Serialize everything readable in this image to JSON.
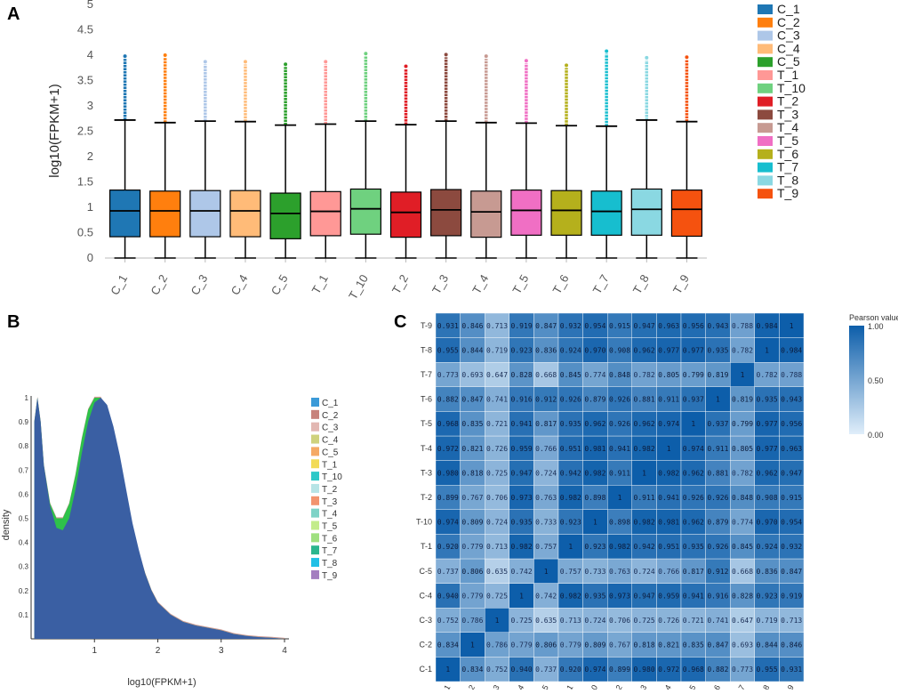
{
  "chart_data": [
    {
      "panel": "A",
      "type": "box",
      "ylabel": "log10(FPKM+1)",
      "ylim": [
        0,
        5
      ],
      "yticks": [
        "0",
        "0.5",
        "1",
        "1.5",
        "2",
        "2.5",
        "3",
        "3.5",
        "4",
        "4.5",
        "5"
      ],
      "categories": [
        "C_1",
        "C_2",
        "C_3",
        "C_4",
        "C_5",
        "T_1",
        "T_10",
        "T_2",
        "T_3",
        "T_4",
        "T_5",
        "T_6",
        "T_7",
        "T_8",
        "T_9"
      ],
      "colors": [
        "#1f77b4",
        "#ff7f0e",
        "#aec7e8",
        "#ffbb78",
        "#2ca02c",
        "#ff9896",
        "#6fd17f",
        "#e01e26",
        "#8c4a3f",
        "#c79a92",
        "#f06fc4",
        "#b5b01c",
        "#17becf",
        "#8ad8e2",
        "#f5520f"
      ],
      "boxes": [
        {
          "q1": 0.42,
          "median": 0.93,
          "q3": 1.34,
          "whisker_low": 0,
          "whisker_high": 2.72,
          "outlier_max": 3.98
        },
        {
          "q1": 0.42,
          "median": 0.93,
          "q3": 1.32,
          "whisker_low": 0,
          "whisker_high": 2.67,
          "outlier_max": 4.0
        },
        {
          "q1": 0.42,
          "median": 0.93,
          "q3": 1.33,
          "whisker_low": 0,
          "whisker_high": 2.7,
          "outlier_max": 3.87
        },
        {
          "q1": 0.42,
          "median": 0.93,
          "q3": 1.33,
          "whisker_low": 0,
          "whisker_high": 2.69,
          "outlier_max": 3.87
        },
        {
          "q1": 0.38,
          "median": 0.88,
          "q3": 1.28,
          "whisker_low": 0,
          "whisker_high": 2.62,
          "outlier_max": 3.82
        },
        {
          "q1": 0.44,
          "median": 0.92,
          "q3": 1.31,
          "whisker_low": 0,
          "whisker_high": 2.64,
          "outlier_max": 3.87
        },
        {
          "q1": 0.47,
          "median": 0.97,
          "q3": 1.36,
          "whisker_low": 0,
          "whisker_high": 2.7,
          "outlier_max": 4.03
        },
        {
          "q1": 0.41,
          "median": 0.9,
          "q3": 1.3,
          "whisker_low": 0,
          "whisker_high": 2.63,
          "outlier_max": 3.78
        },
        {
          "q1": 0.44,
          "median": 0.95,
          "q3": 1.35,
          "whisker_low": 0,
          "whisker_high": 2.7,
          "outlier_max": 4.01
        },
        {
          "q1": 0.41,
          "median": 0.91,
          "q3": 1.32,
          "whisker_low": 0,
          "whisker_high": 2.67,
          "outlier_max": 3.98
        },
        {
          "q1": 0.45,
          "median": 0.94,
          "q3": 1.34,
          "whisker_low": 0,
          "whisker_high": 2.66,
          "outlier_max": 3.89
        },
        {
          "q1": 0.45,
          "median": 0.94,
          "q3": 1.33,
          "whisker_low": 0,
          "whisker_high": 2.61,
          "outlier_max": 3.8
        },
        {
          "q1": 0.45,
          "median": 0.92,
          "q3": 1.32,
          "whisker_low": 0,
          "whisker_high": 2.6,
          "outlier_max": 4.08
        },
        {
          "q1": 0.45,
          "median": 0.96,
          "q3": 1.36,
          "whisker_low": 0,
          "whisker_high": 2.72,
          "outlier_max": 3.95
        },
        {
          "q1": 0.43,
          "median": 0.96,
          "q3": 1.34,
          "whisker_low": 0,
          "whisker_high": 2.69,
          "outlier_max": 3.96
        }
      ]
    },
    {
      "panel": "B",
      "type": "area",
      "xlabel": "log10(FPKM+1)",
      "ylabel": "density",
      "xlim": [
        0,
        4
      ],
      "ylim": [
        0,
        1
      ],
      "xticks": [
        "1",
        "2",
        "3",
        "4"
      ],
      "yticks": [
        "0.1",
        "0.2",
        "0.3",
        "0.4",
        "0.5",
        "0.6",
        "0.7",
        "0.8",
        "0.9",
        "1"
      ],
      "legend": [
        "C_1",
        "C_2",
        "C_3",
        "C_4",
        "C_5",
        "T_1",
        "T_10",
        "T_2",
        "T_3",
        "T_4",
        "T_5",
        "T_6",
        "T_7",
        "T_8",
        "T_9"
      ],
      "legend_colors": [
        "#3b9ad8",
        "#c7837c",
        "#e2b7b2",
        "#cfd27d",
        "#f5a964",
        "#f2db56",
        "#2ec8c8",
        "#b7e4e6",
        "#f2946f",
        "#7ed3c7",
        "#c3ec8b",
        "#9fe07f",
        "#2bb68e",
        "#21c0e6",
        "#a47fc0"
      ],
      "fill_color": "#3a5fa3",
      "green_fill": "#2ec24a",
      "x": [
        0.05,
        0.1,
        0.15,
        0.2,
        0.3,
        0.4,
        0.5,
        0.6,
        0.7,
        0.8,
        0.9,
        1.0,
        1.1,
        1.2,
        1.3,
        1.4,
        1.5,
        1.6,
        1.7,
        1.8,
        1.9,
        2.0,
        2.2,
        2.4,
        2.6,
        2.8,
        3.0,
        3.2,
        3.4,
        3.6,
        3.8,
        4.0
      ],
      "series": [
        {
          "name": "main",
          "values": [
            0.9,
            1.0,
            0.9,
            0.72,
            0.55,
            0.46,
            0.45,
            0.5,
            0.62,
            0.77,
            0.9,
            0.98,
            1.0,
            0.97,
            0.88,
            0.76,
            0.62,
            0.48,
            0.37,
            0.27,
            0.2,
            0.15,
            0.1,
            0.07,
            0.055,
            0.045,
            0.035,
            0.02,
            0.012,
            0.007,
            0.004,
            0.0
          ]
        },
        {
          "name": "green_upper",
          "values": [
            0.9,
            1.0,
            0.9,
            0.72,
            0.56,
            0.5,
            0.5,
            0.56,
            0.68,
            0.83,
            0.95,
            1.0,
            1.0,
            0.94,
            0.84,
            0.72,
            0.59,
            0.46,
            0.36,
            0.27,
            0.2,
            0.15,
            0.1,
            0.07,
            0.055,
            0.045,
            0.035,
            0.02,
            0.012,
            0.007,
            0.004,
            0.0
          ]
        }
      ]
    },
    {
      "panel": "C",
      "type": "heatmap",
      "labels": [
        "C-1",
        "C-2",
        "C-3",
        "C-4",
        "C-5",
        "T-1",
        "T-10",
        "T-2",
        "T-3",
        "T-4",
        "T-5",
        "T-6",
        "T-7",
        "T-8",
        "T-9"
      ],
      "colorbar_title": "Pearson value",
      "colorbar_ticks": [
        "1.00",
        "0.50",
        "0.00"
      ],
      "matrix": [
        [
          "1",
          "0.834",
          "0.752",
          "0.940",
          "0.737",
          "0.920",
          "0.974",
          "0.899",
          "0.980",
          "0.972",
          "0.968",
          "0.882",
          "0.773",
          "0.955",
          "0.931"
        ],
        [
          "0.834",
          "1",
          "0.786",
          "0.779",
          "0.806",
          "0.779",
          "0.809",
          "0.767",
          "0.818",
          "0.821",
          "0.835",
          "0.847",
          "0.693",
          "0.844",
          "0.846"
        ],
        [
          "0.752",
          "0.786",
          "1",
          "0.725",
          "0.635",
          "0.713",
          "0.724",
          "0.706",
          "0.725",
          "0.726",
          "0.721",
          "0.741",
          "0.647",
          "0.719",
          "0.713"
        ],
        [
          "0.940",
          "0.779",
          "0.725",
          "1",
          "0.742",
          "0.982",
          "0.935",
          "0.973",
          "0.947",
          "0.959",
          "0.941",
          "0.916",
          "0.828",
          "0.923",
          "0.919"
        ],
        [
          "0.737",
          "0.806",
          "0.635",
          "0.742",
          "1",
          "0.757",
          "0.733",
          "0.763",
          "0.724",
          "0.766",
          "0.817",
          "0.912",
          "0.668",
          "0.836",
          "0.847"
        ],
        [
          "0.920",
          "0.779",
          "0.713",
          "0.982",
          "0.757",
          "1",
          "0.923",
          "0.982",
          "0.942",
          "0.951",
          "0.935",
          "0.926",
          "0.845",
          "0.924",
          "0.932"
        ],
        [
          "0.974",
          "0.809",
          "0.724",
          "0.935",
          "0.733",
          "0.923",
          "1",
          "0.898",
          "0.982",
          "0.981",
          "0.962",
          "0.879",
          "0.774",
          "0.970",
          "0.954"
        ],
        [
          "0.899",
          "0.767",
          "0.706",
          "0.973",
          "0.763",
          "0.982",
          "0.898",
          "1",
          "0.911",
          "0.941",
          "0.926",
          "0.926",
          "0.848",
          "0.908",
          "0.915"
        ],
        [
          "0.980",
          "0.818",
          "0.725",
          "0.947",
          "0.724",
          "0.942",
          "0.982",
          "0.911",
          "1",
          "0.982",
          "0.962",
          "0.881",
          "0.782",
          "0.962",
          "0.947"
        ],
        [
          "0.972",
          "0.821",
          "0.726",
          "0.959",
          "0.766",
          "0.951",
          "0.981",
          "0.941",
          "0.982",
          "1",
          "0.974",
          "0.911",
          "0.805",
          "0.977",
          "0.963"
        ],
        [
          "0.968",
          "0.835",
          "0.721",
          "0.941",
          "0.817",
          "0.935",
          "0.962",
          "0.926",
          "0.962",
          "0.974",
          "1",
          "0.937",
          "0.799",
          "0.977",
          "0.956"
        ],
        [
          "0.882",
          "0.847",
          "0.741",
          "0.916",
          "0.912",
          "0.926",
          "0.879",
          "0.926",
          "0.881",
          "0.911",
          "0.937",
          "1",
          "0.819",
          "0.935",
          "0.943"
        ],
        [
          "0.773",
          "0.693",
          "0.647",
          "0.828",
          "0.668",
          "0.845",
          "0.774",
          "0.848",
          "0.782",
          "0.805",
          "0.799",
          "0.819",
          "1",
          "0.782",
          "0.788"
        ],
        [
          "0.955",
          "0.844",
          "0.719",
          "0.923",
          "0.836",
          "0.924",
          "0.970",
          "0.908",
          "0.962",
          "0.977",
          "0.977",
          "0.935",
          "0.782",
          "1",
          "0.984"
        ],
        [
          "0.931",
          "0.846",
          "0.713",
          "0.919",
          "0.847",
          "0.932",
          "0.954",
          "0.915",
          "0.947",
          "0.963",
          "0.956",
          "0.943",
          "0.788",
          "0.984",
          "1"
        ]
      ]
    }
  ],
  "panels": {
    "a": "A",
    "b": "B",
    "c": "C"
  }
}
